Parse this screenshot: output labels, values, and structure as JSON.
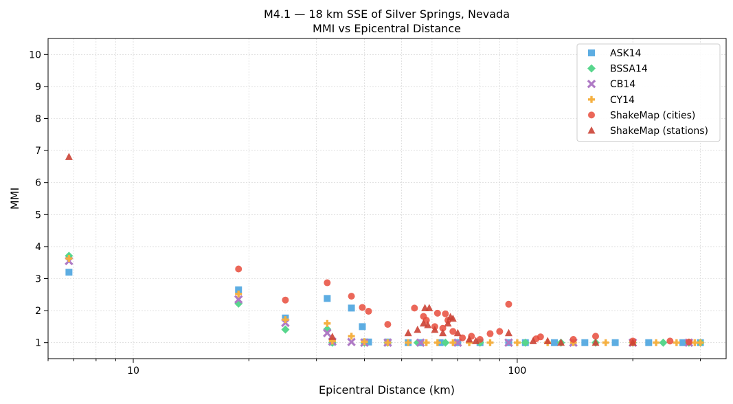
{
  "chart_data": {
    "type": "scatter",
    "title": "M4.1 — 18 km SSE of Silver Springs, Nevada",
    "subtitle": "MMI vs Epicentral Distance",
    "xlabel": "Epicentral Distance (km)",
    "ylabel": "MMI",
    "x_scale": "log",
    "xlim": [
      6,
      350
    ],
    "ylim": [
      0.5,
      10.5
    ],
    "x_ticks": [
      10,
      100
    ],
    "x_tick_labels": [
      "10",
      "100"
    ],
    "y_ticks": [
      1,
      2,
      3,
      4,
      5,
      6,
      7,
      8,
      9,
      10
    ],
    "y_tick_labels": [
      "1",
      "2",
      "3",
      "4",
      "5",
      "6",
      "7",
      "8",
      "9",
      "10"
    ],
    "grid": true,
    "legend_position": "top-right",
    "series": [
      {
        "name": "ASK14",
        "marker": "square",
        "color": "#5DADE2",
        "points": [
          [
            6.8,
            3.2
          ],
          [
            18.8,
            2.65
          ],
          [
            24.9,
            1.77
          ],
          [
            32,
            2.38
          ],
          [
            33,
            1.02
          ],
          [
            37,
            2.08
          ],
          [
            39.5,
            1.5
          ],
          [
            40,
            1.02
          ],
          [
            41,
            1.02
          ],
          [
            46,
            1.02
          ],
          [
            52,
            1.0
          ],
          [
            56,
            1.0
          ],
          [
            63,
            1.0
          ],
          [
            70,
            1.0
          ],
          [
            80,
            1.0
          ],
          [
            95,
            1.0
          ],
          [
            105,
            1.0
          ],
          [
            125,
            1.0
          ],
          [
            150,
            1.0
          ],
          [
            180,
            1.0
          ],
          [
            220,
            1.0
          ],
          [
            270,
            1.0
          ],
          [
            300,
            1.0
          ]
        ]
      },
      {
        "name": "BSSA14",
        "marker": "diamond",
        "color": "#58D68D",
        "points": [
          [
            6.8,
            3.71
          ],
          [
            18.8,
            2.22
          ],
          [
            24.9,
            1.41
          ],
          [
            32,
            1.42
          ],
          [
            33,
            1.0
          ],
          [
            40,
            1.0
          ],
          [
            46,
            1.0
          ],
          [
            55,
            1.0
          ],
          [
            65,
            1.0
          ],
          [
            80,
            1.0
          ],
          [
            105,
            1.0
          ],
          [
            130,
            1.0
          ],
          [
            160,
            1.0
          ],
          [
            200,
            1.0
          ],
          [
            240,
            1.0
          ],
          [
            280,
            1.0
          ],
          [
            300,
            1.0
          ]
        ]
      },
      {
        "name": "CB14",
        "marker": "x",
        "color": "#AF7AC5",
        "points": [
          [
            6.8,
            3.55
          ],
          [
            18.8,
            2.35
          ],
          [
            24.9,
            1.62
          ],
          [
            32,
            1.3
          ],
          [
            33,
            1.03
          ],
          [
            37,
            1.02
          ],
          [
            40,
            1.0
          ],
          [
            46,
            1.0
          ],
          [
            56,
            1.0
          ],
          [
            70,
            1.0
          ],
          [
            95,
            1.0
          ],
          [
            140,
            1.0
          ],
          [
            200,
            1.0
          ],
          [
            280,
            1.0
          ]
        ]
      },
      {
        "name": "CY14",
        "marker": "plus",
        "color": "#F5B041",
        "points": [
          [
            6.8,
            3.63
          ],
          [
            18.8,
            2.52
          ],
          [
            24.9,
            1.72
          ],
          [
            32,
            1.6
          ],
          [
            33,
            1.05
          ],
          [
            37,
            1.2
          ],
          [
            40,
            1.03
          ],
          [
            46,
            1.0
          ],
          [
            52,
            1.0
          ],
          [
            58,
            1.0
          ],
          [
            62,
            1.0
          ],
          [
            68,
            1.0
          ],
          [
            75,
            1.0
          ],
          [
            85,
            1.0
          ],
          [
            100,
            1.0
          ],
          [
            120,
            1.0
          ],
          [
            140,
            1.0
          ],
          [
            170,
            1.0
          ],
          [
            200,
            1.0
          ],
          [
            230,
            1.0
          ],
          [
            260,
            1.0
          ],
          [
            290,
            1.0
          ],
          [
            300,
            1.0
          ]
        ]
      },
      {
        "name": "ShakeMap (cities)",
        "marker": "circle",
        "color": "#E74C3C",
        "points": [
          [
            18.8,
            3.3
          ],
          [
            24.9,
            2.33
          ],
          [
            32,
            2.87
          ],
          [
            37,
            2.45
          ],
          [
            39.5,
            2.1
          ],
          [
            41,
            1.98
          ],
          [
            46,
            1.57
          ],
          [
            54,
            2.08
          ],
          [
            57,
            1.82
          ],
          [
            58,
            1.7
          ],
          [
            61,
            1.5
          ],
          [
            62,
            1.92
          ],
          [
            64,
            1.45
          ],
          [
            65,
            1.9
          ],
          [
            66,
            1.7
          ],
          [
            68,
            1.35
          ],
          [
            72,
            1.15
          ],
          [
            76,
            1.2
          ],
          [
            80,
            1.1
          ],
          [
            85,
            1.28
          ],
          [
            90,
            1.35
          ],
          [
            95,
            2.2
          ],
          [
            112,
            1.12
          ],
          [
            115,
            1.18
          ],
          [
            140,
            1.1
          ],
          [
            160,
            1.2
          ],
          [
            200,
            1.05
          ],
          [
            250,
            1.05
          ],
          [
            280,
            1.02
          ]
        ]
      },
      {
        "name": "ShakeMap (stations)",
        "marker": "triangle",
        "color": "#CB4335",
        "points": [
          [
            6.8,
            6.8
          ],
          [
            33,
            1.18
          ],
          [
            52,
            1.3
          ],
          [
            55,
            1.4
          ],
          [
            57,
            1.6
          ],
          [
            57.5,
            2.08
          ],
          [
            58.5,
            1.55
          ],
          [
            59,
            2.08
          ],
          [
            61,
            1.4
          ],
          [
            64,
            1.3
          ],
          [
            66,
            1.6
          ],
          [
            67,
            1.8
          ],
          [
            68,
            1.75
          ],
          [
            70,
            1.3
          ],
          [
            75,
            1.1
          ],
          [
            78,
            1.05
          ],
          [
            95,
            1.3
          ],
          [
            110,
            1.05
          ],
          [
            120,
            1.05
          ],
          [
            130,
            1.0
          ],
          [
            160,
            1.0
          ],
          [
            200,
            1.0
          ]
        ]
      }
    ]
  }
}
